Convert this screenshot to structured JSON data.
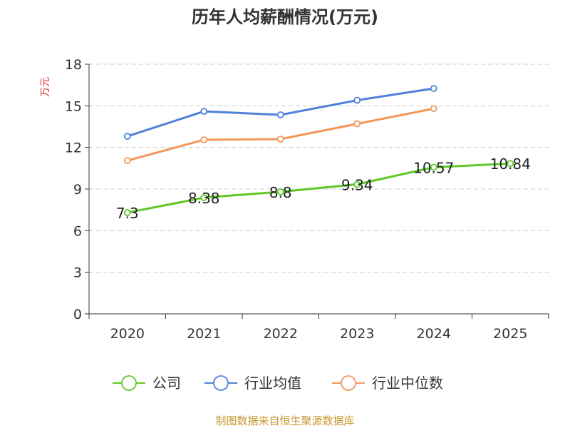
{
  "chart_data": {
    "type": "line",
    "title": "历年人均薪酬情况(万元)",
    "ylabel": "万元",
    "xlabel": "",
    "categories": [
      "2020",
      "2021",
      "2022",
      "2023",
      "2024",
      "2025"
    ],
    "ylim": [
      0,
      18
    ],
    "yticks": [
      0,
      3,
      6,
      9,
      12,
      15,
      18
    ],
    "grid": true,
    "legend_position": "bottom",
    "series": [
      {
        "name": "公司",
        "color": "#5fc726",
        "values": [
          7.3,
          8.38,
          8.8,
          9.34,
          10.57,
          10.84
        ],
        "labels": [
          "7.3",
          "8.38",
          "8.8",
          "9.34",
          "10.57",
          "10.84"
        ]
      },
      {
        "name": "行业均值",
        "color": "#4f81d9",
        "values": [
          12.8,
          14.6,
          14.35,
          15.4,
          16.25,
          null
        ]
      },
      {
        "name": "行业中位数",
        "color": "#f39659",
        "values": [
          11.05,
          12.55,
          12.6,
          13.7,
          14.8,
          null
        ]
      }
    ]
  },
  "source": "制图数据来自恒生聚源数据库",
  "colors": {
    "title": "#333333",
    "ylabel": "#e03030",
    "source": "#c8962e",
    "axis": "#333333",
    "grid": "#cccccc"
  }
}
